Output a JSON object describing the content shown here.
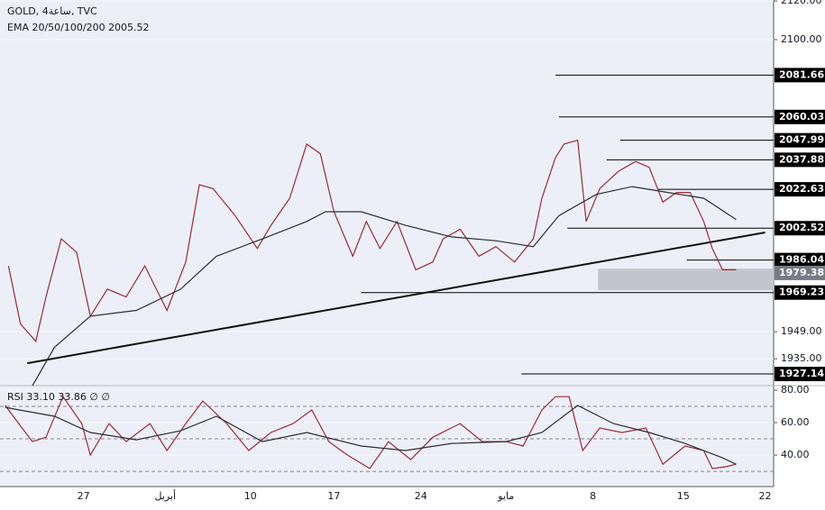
{
  "chart_data": [
    {
      "type": "line",
      "title": "GOLD, 4ساعة, TVC",
      "subtitle": "EMA 20/50/100/200  2005.52",
      "xlim": [
        -4.9,
        40.5
      ],
      "ylim": [
        1921.1,
        2120.5
      ],
      "yticks": [
        {
          "value": 2120,
          "label": "2120.00"
        },
        {
          "value": 2100,
          "label": "2100.00"
        },
        {
          "value": 1949,
          "label": "1949.00"
        },
        {
          "value": 1935,
          "label": "1935.00"
        }
      ],
      "series": [
        {
          "color": "#9c2a35",
          "x": [
            -4.4,
            -3.7,
            -2.8,
            -2.2,
            -1.3,
            -0.4,
            0.4,
            1.4,
            2.5,
            3.6,
            4.9,
            6.0,
            6.8,
            7.6,
            8.9,
            10.2,
            11.0,
            12.1,
            13.1,
            13.9,
            14.7,
            15.8,
            16.6,
            17.4,
            18.4,
            19.5,
            20.5,
            21.1,
            22.1,
            23.2,
            24.2,
            25.3,
            26.4,
            26.9,
            27.7,
            28.2,
            29.0,
            29.5,
            30.3,
            31.4,
            32.4,
            33.2,
            34.0,
            34.8,
            35.6,
            36.4,
            36.9,
            37.5,
            38.3
          ],
          "values": [
            1983,
            1953,
            1944,
            1967,
            1997,
            1990,
            1957,
            1971,
            1967,
            1983,
            1960,
            1985,
            2025,
            2023,
            2009,
            1992,
            2004,
            2018,
            2046,
            2041,
            2011,
            1988,
            2006,
            1992,
            2006,
            1981,
            1985,
            1997,
            2002,
            1988,
            1993,
            1985,
            1997,
            2018,
            2039,
            2046,
            2048,
            2006,
            2023,
            2032,
            2037,
            2034,
            2016,
            2021,
            2021,
            2006,
            1992,
            1981,
            1981
          ]
        },
        {
          "color": "#2a2e39",
          "x": [
            -3.0,
            -1.7,
            0.4,
            3.1,
            5.7,
            7.8,
            10.5,
            13.1,
            14.2,
            16.3,
            18.9,
            21.6,
            24.2,
            26.4,
            27.9,
            30.1,
            32.2,
            34.3,
            36.4,
            38.3
          ],
          "values": [
            1921,
            1941,
            1957,
            1960,
            1971,
            1988,
            1997,
            2006,
            2011,
            2011,
            2004,
            1998,
            1996,
            1993,
            2009,
            2020,
            2024,
            2021,
            2018,
            2007
          ]
        }
      ],
      "trendline": {
        "x": [
          -3.3,
          40.0
        ],
        "values": [
          1932.7,
          2000.3
        ]
      },
      "levels": [
        {
          "value": 2081.66,
          "x_start": 27.7
        },
        {
          "value": 2060.03,
          "x_start": 27.9
        },
        {
          "value": 2047.99,
          "x_start": 31.5
        },
        {
          "value": 2037.88,
          "x_start": 30.7
        },
        {
          "value": 2022.63,
          "x_start": 33.7
        },
        {
          "value": 2002.52,
          "x_start": 28.4
        },
        {
          "value": 1986.04,
          "x_start": 35.4
        },
        {
          "value": 1969.23,
          "x_start": 16.3
        },
        {
          "value": 1927.14,
          "x_start": 25.7
        }
      ],
      "zone": {
        "x_start": 30.2,
        "from": 1970.4,
        "to": 1981.6
      },
      "last_price": 1979.38
    },
    {
      "type": "line",
      "title": "RSI  33.10  33.86  ∅  ∅",
      "xlim": [
        -4.9,
        40.5
      ],
      "ylim": [
        20.6,
        82.8
      ],
      "yticks": [
        {
          "value": 80,
          "label": "80.00"
        },
        {
          "value": 60,
          "label": "60.00"
        },
        {
          "value": 40,
          "label": "40.00"
        }
      ],
      "bands": [
        70,
        50,
        30
      ],
      "xticks": [
        {
          "value": 0,
          "label": "27"
        },
        {
          "value": 4.8,
          "label": "أبريل"
        },
        {
          "value": 9.8,
          "label": "10"
        },
        {
          "value": 14.7,
          "label": "17"
        },
        {
          "value": 19.8,
          "label": "24"
        },
        {
          "value": 24.8,
          "label": "مايو"
        },
        {
          "value": 29.9,
          "label": "8"
        },
        {
          "value": 35.2,
          "label": "15"
        },
        {
          "value": 40.0,
          "label": "22"
        }
      ],
      "series": [
        {
          "color": "#9c2a35",
          "x": [
            -4.6,
            -3.8,
            -3.0,
            -2.2,
            -1.2,
            -0.1,
            0.4,
            1.5,
            2.5,
            3.9,
            4.9,
            6.0,
            7.0,
            8.4,
            9.7,
            11.0,
            12.3,
            13.4,
            14.4,
            15.5,
            16.8,
            17.9,
            19.2,
            20.5,
            22.1,
            23.4,
            24.8,
            25.8,
            26.9,
            27.7,
            28.5,
            29.3,
            30.3,
            31.6,
            33.0,
            34.0,
            35.3,
            36.4,
            36.9,
            37.7,
            38.3
          ],
          "values": [
            70.6,
            59.4,
            48.3,
            51,
            76,
            59.4,
            40,
            59.4,
            48.3,
            59.4,
            42.8,
            59.4,
            73.3,
            59.4,
            42.8,
            53.9,
            59.4,
            67.8,
            48.3,
            40,
            31.7,
            48.3,
            37.2,
            51,
            59.4,
            48.3,
            48.3,
            45.6,
            67.8,
            76,
            76,
            42.8,
            56.7,
            53.9,
            56.7,
            34.4,
            45.6,
            42.8,
            31.7,
            32.8,
            34.4
          ]
        },
        {
          "color": "#2a2e39",
          "x": [
            -4.6,
            -1.7,
            0.4,
            3.1,
            5.7,
            7.8,
            10.5,
            13.1,
            16.3,
            18.9,
            21.6,
            24.8,
            26.9,
            29.0,
            31.1,
            33.2,
            35.3,
            37.5,
            38.3
          ],
          "values": [
            69.4,
            63.9,
            53.9,
            49.4,
            55,
            63.9,
            48.3,
            53.9,
            45.6,
            42.8,
            47.2,
            48.3,
            53.9,
            70.6,
            59.4,
            53.9,
            47.2,
            38.3,
            34.4
          ]
        }
      ]
    }
  ]
}
